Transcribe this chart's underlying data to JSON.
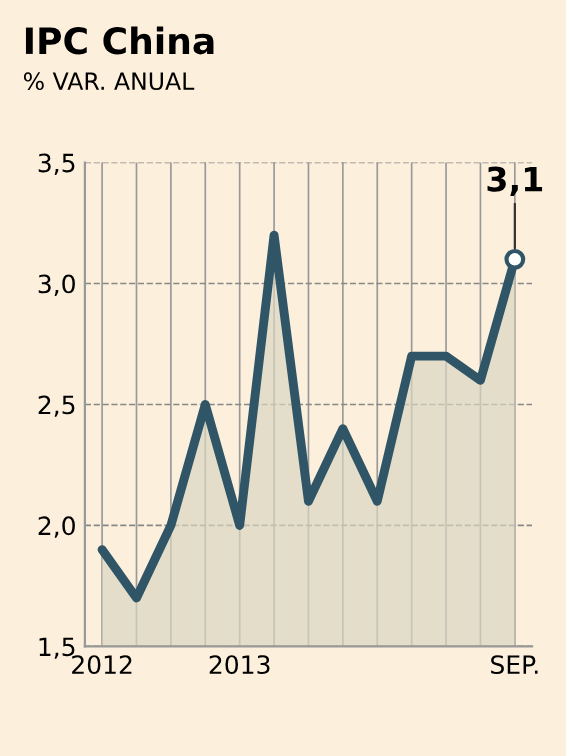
{
  "chart_data": {
    "type": "area",
    "title": "IPC China",
    "subtitle": "% VAR. ANUAL",
    "categories": [
      "2012",
      null,
      null,
      null,
      "2013",
      null,
      null,
      null,
      null,
      null,
      null,
      null,
      "SEP."
    ],
    "series": [
      {
        "color": "#2f5567",
        "values": [
          1.9,
          1.7,
          2.0,
          2.5,
          2.0,
          3.2,
          2.1,
          2.4,
          2.1,
          2.7,
          2.7,
          2.6,
          3.1
        ],
        "value_labels": [
          null,
          null,
          null,
          null,
          null,
          null,
          null,
          null,
          null,
          null,
          null,
          null,
          "3,1"
        ]
      }
    ],
    "ylim": [
      1.5,
      3.5
    ],
    "yticks": [
      {
        "value": 1.5,
        "label": "1,5"
      },
      {
        "value": 2.0,
        "label": "2,0"
      },
      {
        "value": 2.5,
        "label": "2,5"
      },
      {
        "value": 3.0,
        "label": "3,0"
      },
      {
        "value": 3.5,
        "label": "3,5"
      }
    ],
    "grid": true
  }
}
